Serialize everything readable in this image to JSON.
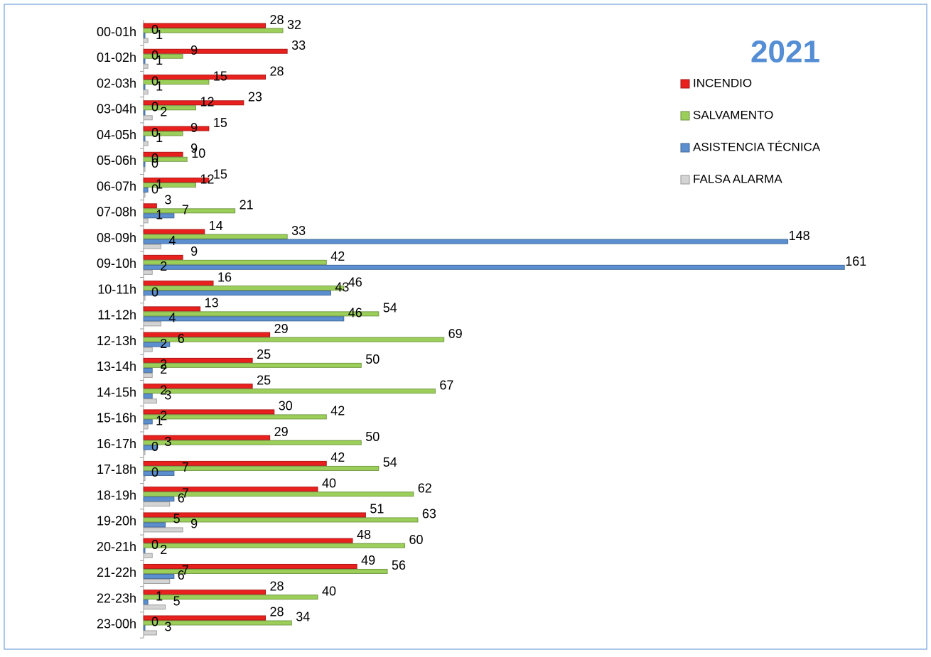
{
  "chart_data": {
    "type": "bar",
    "orientation": "horizontal",
    "title": "2021",
    "legend": "right",
    "categories": [
      "00-01h",
      "01-02h",
      "02-03h",
      "03-04h",
      "04-05h",
      "05-06h",
      "06-07h",
      "07-08h",
      "08-09h",
      "09-10h",
      "10-11h",
      "11-12h",
      "12-13h",
      "13-14h",
      "14-15h",
      "15-16h",
      "16-17h",
      "17-18h",
      "18-19h",
      "19-20h",
      "20-21h",
      "21-22h",
      "22-23h",
      "23-00h"
    ],
    "xlim": [
      0,
      175
    ],
    "series": [
      {
        "name": "INCENDIO",
        "color": "#e8201e",
        "values": [
          28,
          33,
          28,
          23,
          15,
          9,
          15,
          3,
          14,
          9,
          16,
          13,
          29,
          25,
          25,
          30,
          29,
          42,
          40,
          51,
          48,
          49,
          28,
          28
        ]
      },
      {
        "name": "SALVAMENTO",
        "color": "#9bcf5a",
        "values": [
          32,
          9,
          15,
          12,
          9,
          10,
          12,
          21,
          33,
          42,
          46,
          54,
          69,
          50,
          67,
          42,
          50,
          54,
          62,
          63,
          60,
          56,
          40,
          34
        ]
      },
      {
        "name": "ASISTENCIA TÉCNICA",
        "color": "#5b8fcf",
        "values": [
          0,
          0,
          0,
          0,
          0,
          0,
          1,
          7,
          148,
          161,
          43,
          46,
          6,
          2,
          2,
          2,
          3,
          7,
          7,
          5,
          0,
          7,
          1,
          0
        ]
      },
      {
        "name": "FALSA ALARMA",
        "color": "#d4d4d4",
        "values": [
          1,
          1,
          1,
          2,
          1,
          0,
          0,
          1,
          4,
          2,
          0,
          4,
          2,
          2,
          3,
          1,
          0,
          0,
          6,
          9,
          2,
          6,
          5,
          3
        ]
      }
    ]
  }
}
